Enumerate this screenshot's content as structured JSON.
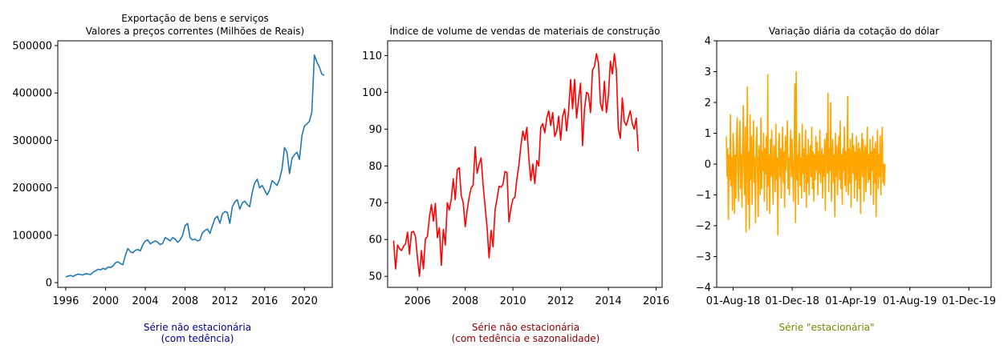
{
  "chart_data": [
    {
      "type": "line",
      "title": [
        "Exportação de bens e serviços",
        "Valores a preços correntes (Milhões de Reais)"
      ],
      "xlim": [
        1995.2,
        2022.8
      ],
      "ylim": [
        -10000,
        510000
      ],
      "xticks": [
        1996,
        2000,
        2004,
        2008,
        2012,
        2016,
        2020
      ],
      "xtick_labels": [
        "1996",
        "2000",
        "2004",
        "2008",
        "2012",
        "2016",
        "2020"
      ],
      "yticks": [
        0,
        100000,
        200000,
        300000,
        400000,
        500000
      ],
      "ytick_labels": [
        "0",
        "100000",
        "200000",
        "300000",
        "400000",
        "500000"
      ],
      "color": "#1f77b4",
      "x": [
        1996.0,
        1996.25,
        1996.5,
        1996.75,
        1997.0,
        1997.25,
        1997.5,
        1997.75,
        1998.0,
        1998.25,
        1998.5,
        1998.75,
        1999.0,
        1999.25,
        1999.5,
        1999.75,
        2000.0,
        2000.25,
        2000.5,
        2000.75,
        2001.0,
        2001.25,
        2001.5,
        2001.75,
        2002.0,
        2002.25,
        2002.5,
        2002.75,
        2003.0,
        2003.25,
        2003.5,
        2003.75,
        2004.0,
        2004.25,
        2004.5,
        2004.75,
        2005.0,
        2005.25,
        2005.5,
        2005.75,
        2006.0,
        2006.25,
        2006.5,
        2006.75,
        2007.0,
        2007.25,
        2007.5,
        2007.75,
        2008.0,
        2008.25,
        2008.5,
        2008.75,
        2009.0,
        2009.25,
        2009.5,
        2009.75,
        2010.0,
        2010.25,
        2010.5,
        2010.75,
        2011.0,
        2011.25,
        2011.5,
        2011.75,
        2012.0,
        2012.25,
        2012.5,
        2012.75,
        2013.0,
        2013.25,
        2013.5,
        2013.75,
        2014.0,
        2014.25,
        2014.5,
        2014.75,
        2015.0,
        2015.25,
        2015.5,
        2015.75,
        2016.0,
        2016.25,
        2016.5,
        2016.75,
        2017.0,
        2017.25,
        2017.5,
        2017.75,
        2018.0,
        2018.25,
        2018.5,
        2018.75,
        2019.0,
        2019.25,
        2019.5,
        2019.75,
        2020.0,
        2020.25,
        2020.5,
        2020.75,
        2021.0,
        2021.25,
        2021.5,
        2021.75,
        2022.0
      ],
      "y": [
        12000,
        14000,
        15000,
        13000,
        16000,
        18000,
        17000,
        16000,
        19000,
        18000,
        17000,
        22000,
        25000,
        28000,
        27000,
        30000,
        28000,
        33000,
        32000,
        35000,
        42000,
        44000,
        40000,
        38000,
        58000,
        72000,
        65000,
        63000,
        68000,
        70000,
        67000,
        80000,
        88000,
        90000,
        82000,
        85000,
        88000,
        85000,
        80000,
        83000,
        95000,
        92000,
        88000,
        95000,
        92000,
        85000,
        90000,
        100000,
        120000,
        125000,
        95000,
        90000,
        92000,
        88000,
        90000,
        105000,
        110000,
        113000,
        104000,
        120000,
        135000,
        140000,
        125000,
        145000,
        150000,
        148000,
        125000,
        160000,
        170000,
        175000,
        155000,
        168000,
        172000,
        165000,
        160000,
        190000,
        210000,
        218000,
        200000,
        205000,
        195000,
        185000,
        195000,
        215000,
        210000,
        205000,
        218000,
        240000,
        285000,
        275000,
        230000,
        262000,
        270000,
        275000,
        260000,
        310000,
        330000,
        335000,
        340000,
        360000,
        480000,
        465000,
        455000,
        440000,
        437000
      ],
      "note": "Série não estacionária",
      "note_sub": "(com tedência)",
      "note_color": "#00008b"
    },
    {
      "type": "line",
      "title": [
        "Índice de volume de vendas de materiais de construção"
      ],
      "xlim": [
        2004.75,
        2016.25
      ],
      "ylim": [
        47,
        114
      ],
      "xticks": [
        2006,
        2008,
        2010,
        2012,
        2014,
        2016
      ],
      "xtick_labels": [
        "2006",
        "2008",
        "2010",
        "2012",
        "2014",
        "2016"
      ],
      "yticks": [
        50,
        60,
        70,
        80,
        90,
        100,
        110
      ],
      "ytick_labels": [
        "50",
        "60",
        "70",
        "80",
        "90",
        "100",
        "110"
      ],
      "color": "#ff0000",
      "start": 2005.0,
      "step": 0.08333,
      "values": [
        59.7,
        52.0,
        58.5,
        57.5,
        57.0,
        58.2,
        58.8,
        62.0,
        56.0,
        62.0,
        62.2,
        60.8,
        55.0,
        50.0,
        57.0,
        52.0,
        60.2,
        60.8,
        66.0,
        69.5,
        65.0,
        69.8,
        60.5,
        63.2,
        53.0,
        62.8,
        58.5,
        70.0,
        68.0,
        71.0,
        76.5,
        70.8,
        79.0,
        79.5,
        72.0,
        70.0,
        63.5,
        68.0,
        71.5,
        74.0,
        74.8,
        85.2,
        78.0,
        80.5,
        82.2,
        74.8,
        69.0,
        63.2,
        55.0,
        62.5,
        58.0,
        68.0,
        71.0,
        74.5,
        74.2,
        75.0,
        78.5,
        78.2,
        64.8,
        68.5,
        71.0,
        71.5,
        76.5,
        80.2,
        85.5,
        89.5,
        87.0,
        90.5,
        82.0,
        76.0,
        80.5,
        75.2,
        81.5,
        80.0,
        90.5,
        91.5,
        89.0,
        93.0,
        95.0,
        91.0,
        94.5,
        88.0,
        89.5,
        93.5,
        87.0,
        93.5,
        95.5,
        89.5,
        95.0,
        103.5,
        95.5,
        103.5,
        93.0,
        98.0,
        102.5,
        85.5,
        95.5,
        100.0,
        99.5,
        94.5,
        106.0,
        107.0,
        110.5,
        108.0,
        97.0,
        95.0,
        103.0,
        94.5,
        99.0,
        108.5,
        105.0,
        110.5,
        106.0,
        90.0,
        87.5,
        98.5,
        92.0,
        91.0,
        93.0,
        95.0,
        91.5,
        90.0,
        93.0,
        84.0
      ],
      "note": "Série não estacionária",
      "note_sub": "(com tedência e sazonalidade)",
      "note_color": "#8b0000"
    },
    {
      "type": "line",
      "title": [
        "Variação diária da cotação do dólar"
      ],
      "xlim": [
        -20,
        547
      ],
      "ylim": [
        -4,
        4
      ],
      "xticks": [
        14,
        136,
        257,
        379,
        501
      ],
      "xtick_labels": [
        "01-Aug-18",
        "01-Dec-18",
        "01-Apr-19",
        "01-Aug-19",
        "01-Dec-19"
      ],
      "x_unit": "days from 18-Jul-18",
      "yticks": [
        -4,
        -3,
        -2,
        -1,
        0,
        1,
        2,
        3,
        4
      ],
      "ytick_labels": [
        "−4",
        "−3",
        "−2",
        "−1",
        "0",
        "1",
        "2",
        "3",
        "4"
      ],
      "color": "#ffa500",
      "start": 0,
      "step": 1.4,
      "values": [
        0.9,
        -0.4,
        0.5,
        -1.8,
        0.3,
        -0.5,
        1.6,
        -0.7,
        0.2,
        -1.5,
        1.0,
        0.4,
        -1.6,
        0.3,
        -1.1,
        0.8,
        1.5,
        -0.3,
        -1.2,
        0.6,
        1.4,
        -0.8,
        0.3,
        -1.4,
        0.5,
        1.9,
        -0.2,
        -1.0,
        1.2,
        -2.2,
        0.2,
        2.5,
        -1.3,
        0.4,
        -2.1,
        1.6,
        -0.5,
        0.9,
        -1.3,
        0.3,
        1.4,
        -0.6,
        0.2,
        -1.9,
        0.8,
        1.2,
        -0.4,
        -1.7,
        0.6,
        0.3,
        -1.0,
        1.5,
        -0.8,
        0.4,
        -0.2,
        1.0,
        -1.2,
        0.5,
        -0.3,
        0.9,
        -1.5,
        2.9,
        -0.7,
        0.3,
        -1.6,
        0.8,
        -0.4,
        1.1,
        -0.2,
        -1.3,
        0.6,
        0.4,
        -0.9,
        1.3,
        -0.5,
        0.2,
        -2.3,
        0.7,
        1.0,
        -0.4,
        0.5,
        -1.1,
        0.3,
        1.2,
        -0.6,
        0.4,
        -1.4,
        0.9,
        -0.2,
        0.6,
        1.4,
        -0.8,
        0.2,
        -1.0,
        0.5,
        1.1,
        -0.4,
        0.8,
        -0.3,
        -1.2,
        0.4,
        2.6,
        -1.9,
        3.0,
        -0.5,
        0.3,
        -1.3,
        0.6,
        1.0,
        -0.7,
        0.2,
        -1.1,
        1.3,
        -0.3,
        0.5,
        -0.9,
        0.4,
        1.1,
        -1.4,
        0.3,
        -0.6,
        0.8,
        -1.0,
        0.2,
        0.6,
        -0.4,
        1.2,
        -0.8,
        0.4,
        -1.2,
        0.3,
        -0.5,
        0.9,
        -0.2,
        0.7,
        -1.0,
        0.4,
        -0.3,
        1.1,
        -0.6,
        0.2,
        0.5,
        -1.1,
        0.3,
        -0.4,
        0.8,
        -1.5,
        0.6,
        1.0,
        -0.3,
        2.3,
        -0.9,
        0.5,
        -0.2,
        2.0,
        -1.2,
        0.4,
        0.8,
        -0.6,
        0.3,
        -1.7,
        1.0,
        -0.4,
        0.6,
        -1.0,
        0.2,
        0.9,
        -0.5,
        1.4,
        -0.8,
        0.3,
        -1.3,
        0.5,
        -0.2,
        1.2,
        -0.7,
        0.4,
        -0.9,
        0.3,
        2.2,
        -1.0,
        0.5,
        -0.6,
        0.8,
        -1.4,
        0.2,
        1.0,
        -0.3,
        0.6,
        -1.1,
        0.4,
        -0.5,
        0.9,
        -1.2,
        0.3,
        0.7,
        -0.8,
        0.5,
        -1.6,
        0.2,
        1.0,
        -0.4,
        0.8,
        -1.2,
        0.3,
        0.6,
        -0.9,
        0.4,
        1.2,
        -0.6,
        0.3,
        -0.5,
        0.8,
        -1.0,
        0.4,
        -0.2,
        0.9,
        -1.3,
        0.5,
        -0.6,
        0.7,
        -1.7,
        0.2,
        1.1,
        -0.8,
        0.3,
        -0.4,
        0.9,
        -1.0,
        0.4,
        1.2,
        -0.6,
        0.0,
        -0.7,
        0.0
      ],
      "note": "Série \"estacionária\"",
      "note_sub": "",
      "note_color": "#808000"
    }
  ]
}
